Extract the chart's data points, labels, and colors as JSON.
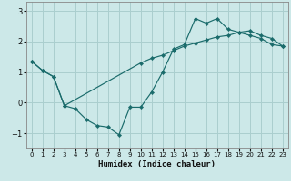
{
  "xlabel": "Humidex (Indice chaleur)",
  "bg_color": "#cce8e8",
  "grid_color": "#aacece",
  "line_color": "#1a6b6b",
  "xlim": [
    -0.5,
    23.5
  ],
  "ylim": [
    -1.5,
    3.3
  ],
  "xticks": [
    0,
    1,
    2,
    3,
    4,
    5,
    6,
    7,
    8,
    9,
    10,
    11,
    12,
    13,
    14,
    15,
    16,
    17,
    18,
    19,
    20,
    21,
    22,
    23
  ],
  "yticks": [
    -1,
    0,
    1,
    2,
    3
  ],
  "curve1_x": [
    0,
    1,
    2,
    3,
    4,
    5,
    6,
    7,
    8,
    9,
    10,
    11,
    12,
    13,
    14,
    15,
    16,
    17,
    18,
    19,
    20,
    21,
    22,
    23
  ],
  "curve1_y": [
    1.35,
    1.05,
    0.85,
    -0.1,
    -0.2,
    -0.55,
    -0.75,
    -0.8,
    -1.05,
    -0.15,
    -0.15,
    0.35,
    1.0,
    1.75,
    1.9,
    2.75,
    2.6,
    2.75,
    2.4,
    2.3,
    2.2,
    2.1,
    1.9,
    1.85
  ],
  "curve2_x": [
    0,
    1,
    2,
    3,
    10,
    11,
    12,
    13,
    14,
    15,
    16,
    17,
    18,
    19,
    20,
    21,
    22,
    23
  ],
  "curve2_y": [
    1.35,
    1.05,
    0.85,
    -0.1,
    1.3,
    1.45,
    1.55,
    1.7,
    1.85,
    1.95,
    2.05,
    2.15,
    2.2,
    2.3,
    2.35,
    2.2,
    2.1,
    1.85
  ]
}
